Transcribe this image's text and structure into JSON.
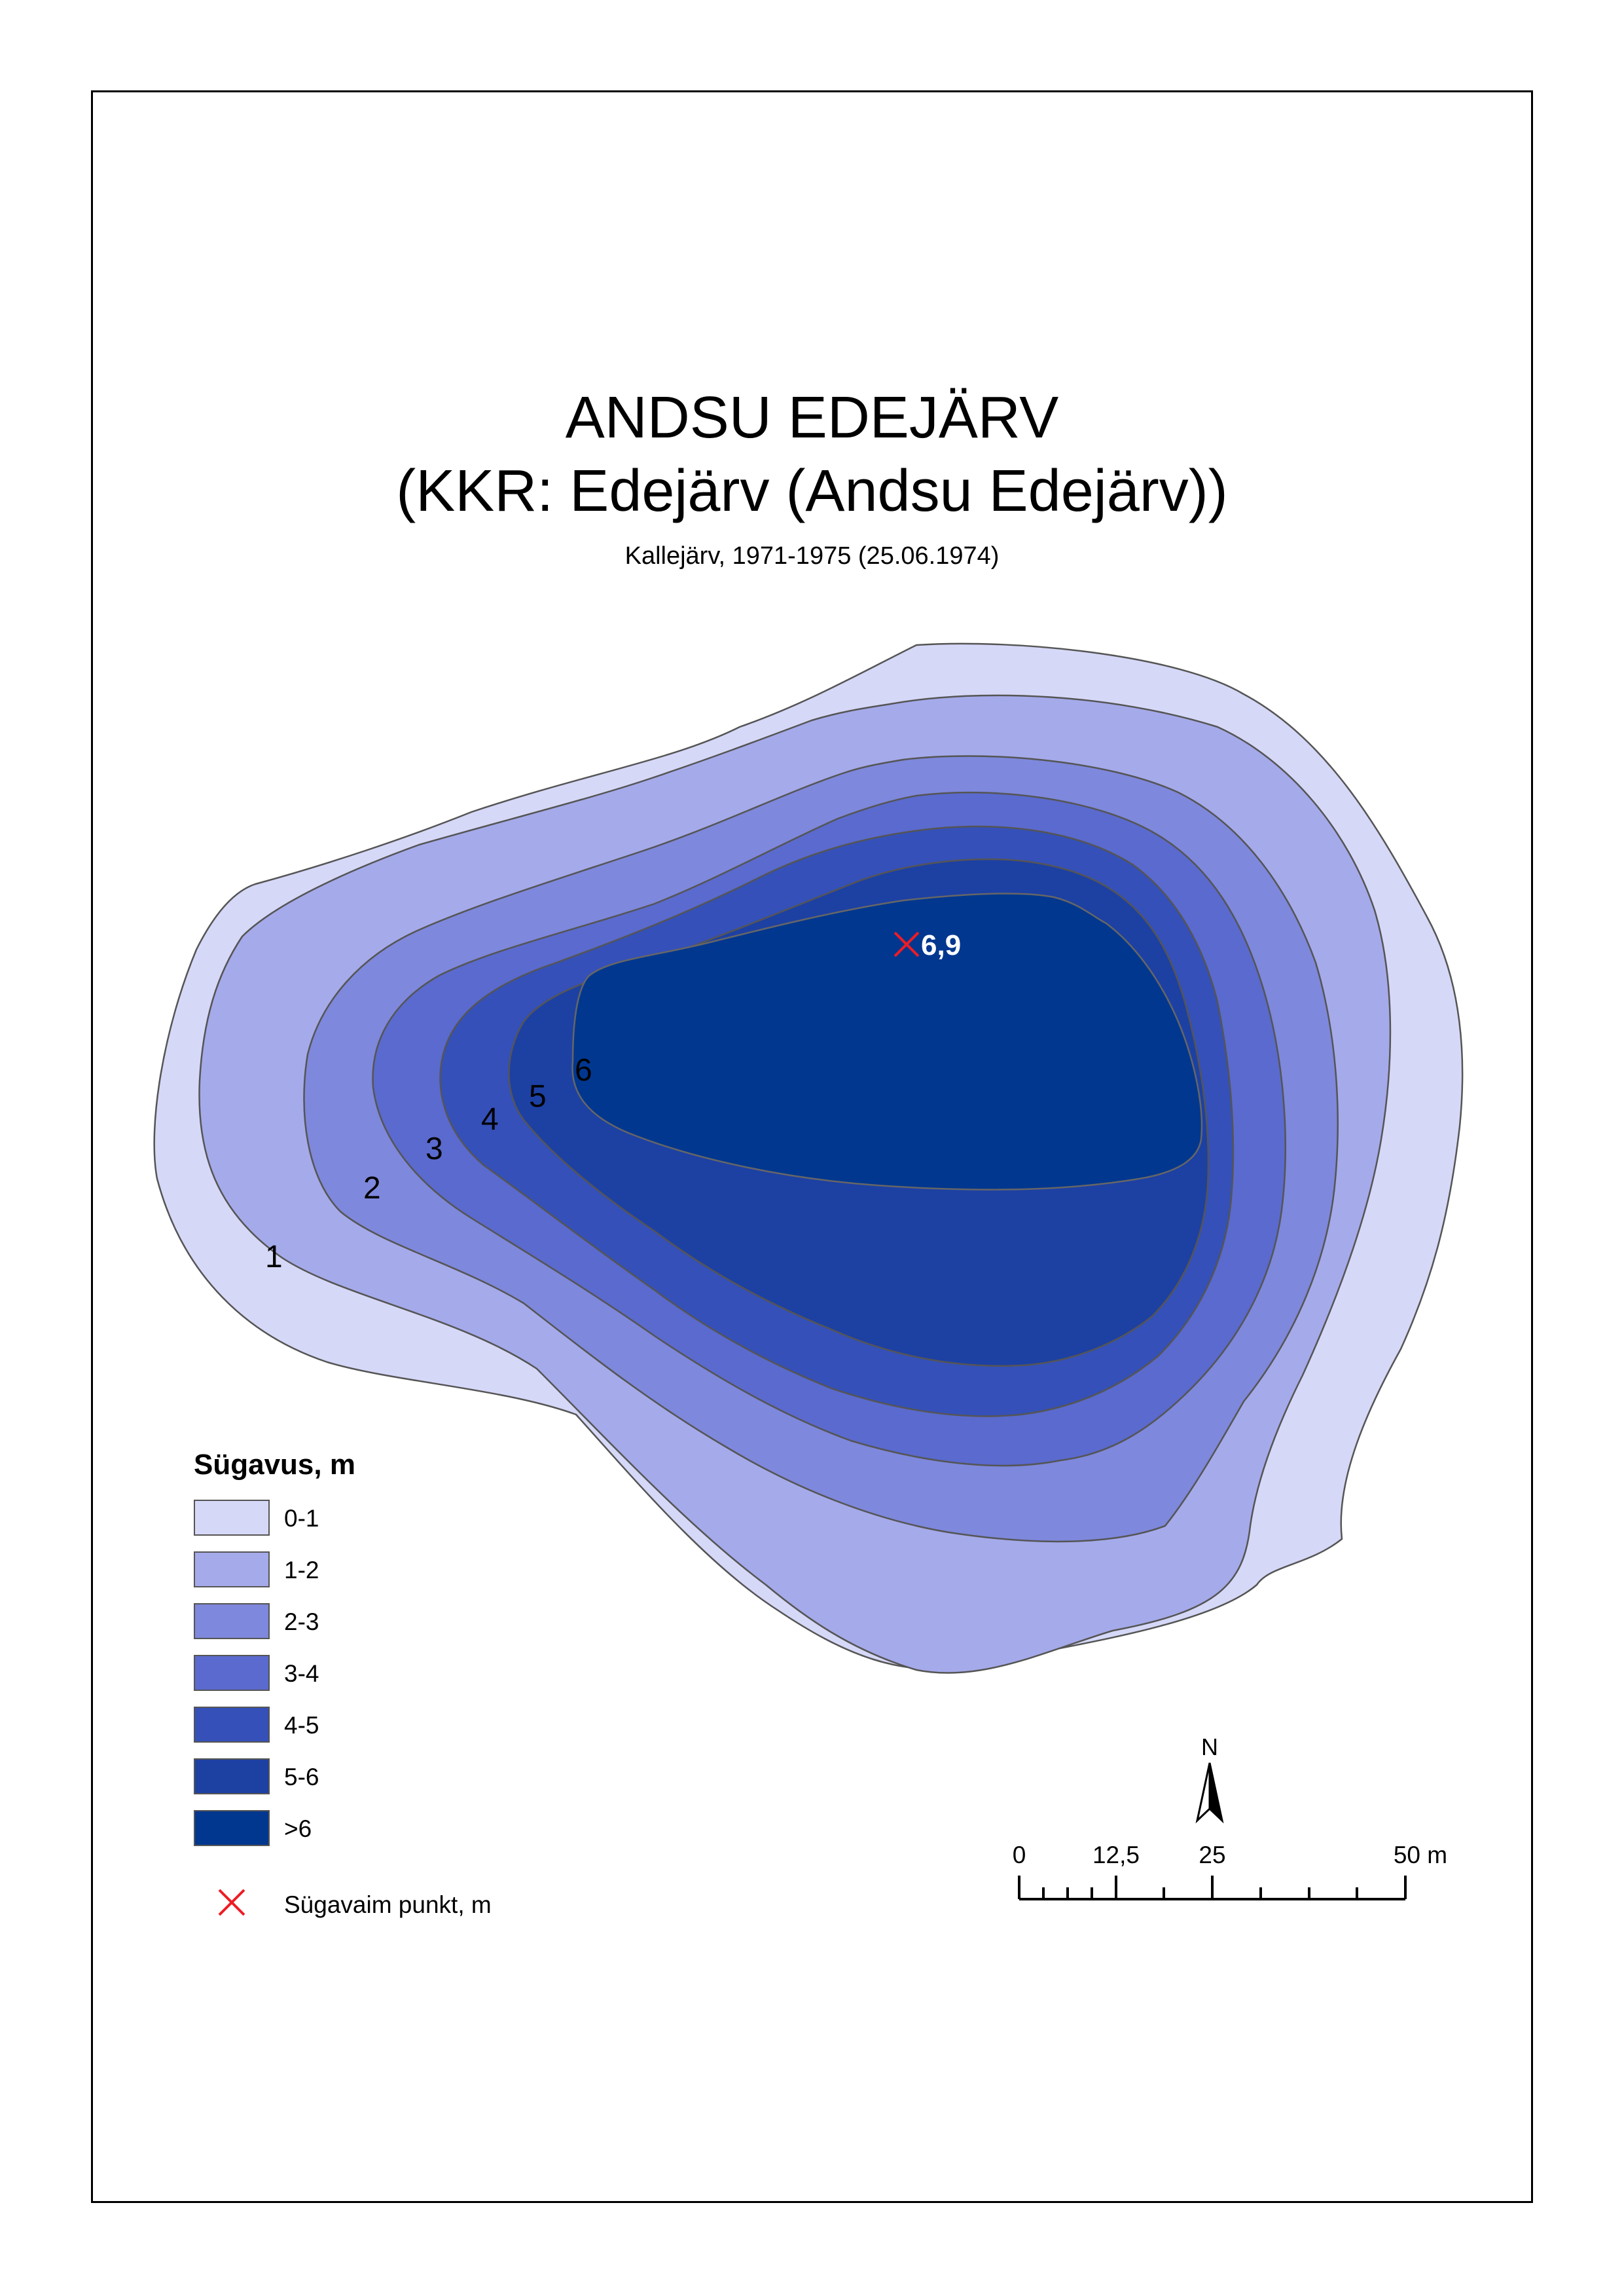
{
  "map": {
    "title": "ANDSU EDEJÄRV",
    "subtitle": "(KKR: Edejärv (Andsu Edejärv))",
    "source": "Kallejärv, 1971-1975 (25.06.1974)",
    "deepest_point_value": "6,9",
    "contour_labels": [
      "1",
      "2",
      "3",
      "4",
      "5",
      "6"
    ]
  },
  "legend": {
    "title": "Sügavus, m",
    "classes": [
      {
        "label": "0-1",
        "color": "#d6d8f8"
      },
      {
        "label": "1-2",
        "color": "#a5aaea"
      },
      {
        "label": "2-3",
        "color": "#7e88dc"
      },
      {
        "label": "3-4",
        "color": "#5a6ace"
      },
      {
        "label": "4-5",
        "color": "#3550b8"
      },
      {
        "label": "5-6",
        "color": "#1d40a3"
      },
      {
        "label": ">6",
        "color": "#01378f"
      }
    ],
    "deepest_point_label": "Sügavaim punkt, m",
    "deepest_point_color": "#ee1c24"
  },
  "north_arrow": {
    "label": "N"
  },
  "scale_bar": {
    "labels": [
      "0",
      "12,5",
      "25",
      "50 m"
    ]
  }
}
